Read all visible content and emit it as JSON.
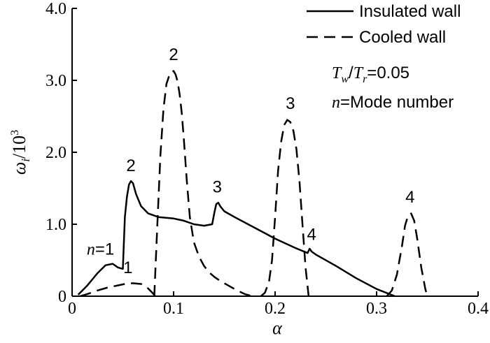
{
  "chart_data": {
    "type": "line",
    "title": "",
    "xlabel": "α",
    "ylabel": "ω",
    "ylabel_sub": "i",
    "ylabel_tail": "/10",
    "ylabel_sup": "3",
    "xlim": [
      0,
      0.4
    ],
    "ylim": [
      0,
      4.0
    ],
    "x_ticks": [
      "0",
      "0.1",
      "0.2",
      "0.3",
      "0.4"
    ],
    "x_tick_values": [
      0,
      0.1,
      0.2,
      0.3,
      0.4
    ],
    "y_ticks": [
      "0",
      "1.0",
      "2.0",
      "3.0",
      "4.0"
    ],
    "y_tick_values": [
      0,
      1.0,
      2.0,
      3.0,
      4.0
    ],
    "grid": false,
    "legend_position": "top-right",
    "series": [
      {
        "name": "Insulated wall",
        "style": "solid",
        "x": [
          0.006,
          0.015,
          0.025,
          0.033,
          0.04,
          0.045,
          0.05,
          0.052,
          0.054,
          0.056,
          0.058,
          0.06,
          0.063,
          0.068,
          0.075,
          0.085,
          0.1,
          0.11,
          0.12,
          0.13,
          0.138,
          0.14,
          0.142,
          0.144,
          0.146,
          0.15,
          0.16,
          0.18,
          0.2,
          0.22,
          0.232,
          0.234,
          0.236,
          0.24,
          0.26,
          0.28,
          0.3,
          0.318
        ],
        "y": [
          0.02,
          0.15,
          0.32,
          0.43,
          0.45,
          0.4,
          0.38,
          1.1,
          1.38,
          1.55,
          1.6,
          1.57,
          1.42,
          1.25,
          1.15,
          1.1,
          1.08,
          1.05,
          1.0,
          0.98,
          1.0,
          1.15,
          1.28,
          1.3,
          1.25,
          1.18,
          1.1,
          0.95,
          0.8,
          0.67,
          0.6,
          0.66,
          0.62,
          0.58,
          0.42,
          0.25,
          0.1,
          0.0
        ]
      },
      {
        "name": "Cooled wall",
        "style": "dashed",
        "segments": [
          {
            "x": [
              0.008,
              0.015,
              0.025,
              0.035,
              0.045,
              0.055,
              0.06,
              0.068,
              0.074,
              0.079,
              0.082
            ],
            "y": [
              0.0,
              0.03,
              0.08,
              0.12,
              0.15,
              0.18,
              0.18,
              0.17,
              0.12,
              0.05,
              0.0
            ]
          },
          {
            "x": [
              0.081,
              0.084,
              0.087,
              0.09,
              0.093,
              0.096,
              0.098,
              0.1,
              0.102,
              0.104,
              0.106,
              0.108,
              0.11,
              0.113,
              0.116,
              0.12,
              0.125,
              0.13,
              0.135,
              0.14,
              0.145,
              0.15,
              0.16,
              0.17,
              0.178
            ],
            "y": [
              0.0,
              1.0,
              1.95,
              2.6,
              2.95,
              3.08,
              3.12,
              3.13,
              3.08,
              2.98,
              2.8,
              2.55,
              2.2,
              1.6,
              1.1,
              0.75,
              0.55,
              0.42,
              0.33,
              0.27,
              0.22,
              0.18,
              0.1,
              0.03,
              0.0
            ]
          },
          {
            "x": [
              0.186,
              0.19,
              0.194,
              0.197,
              0.2,
              0.203,
              0.206,
              0.209,
              0.212,
              0.215,
              0.218,
              0.221,
              0.224,
              0.227,
              0.23,
              0.233
            ],
            "y": [
              0.0,
              0.05,
              0.2,
              0.5,
              1.1,
              1.75,
              2.15,
              2.38,
              2.45,
              2.42,
              2.3,
              2.05,
              1.6,
              1.0,
              0.4,
              0.0
            ]
          },
          {
            "x": [
              0.31,
              0.315,
              0.32,
              0.325,
              0.328,
              0.331,
              0.334,
              0.337,
              0.34,
              0.344,
              0.348,
              0.35
            ],
            "y": [
              0.0,
              0.08,
              0.3,
              0.7,
              0.98,
              1.12,
              1.15,
              1.05,
              0.8,
              0.4,
              0.1,
              0.0
            ]
          }
        ]
      }
    ],
    "mode_labels": [
      {
        "text": "n=1",
        "x": 0.028,
        "y": 0.58
      },
      {
        "text": "2",
        "x": 0.058,
        "y": 1.74
      },
      {
        "text": "3",
        "x": 0.143,
        "y": 1.44
      },
      {
        "text": "4",
        "x": 0.236,
        "y": 0.78
      },
      {
        "text": "1",
        "x": 0.055,
        "y": 0.32
      },
      {
        "text": "2",
        "x": 0.1,
        "y": 3.28
      },
      {
        "text": "3",
        "x": 0.215,
        "y": 2.6
      },
      {
        "text": "4",
        "x": 0.333,
        "y": 1.3
      }
    ],
    "annotations": {
      "ratio_T1": "T",
      "ratio_w": "w",
      "ratio_slash": "/",
      "ratio_T2": "T",
      "ratio_r": "r",
      "ratio_value": "=0.05",
      "mode_n": "n",
      "mode_text": "=Mode number"
    }
  }
}
